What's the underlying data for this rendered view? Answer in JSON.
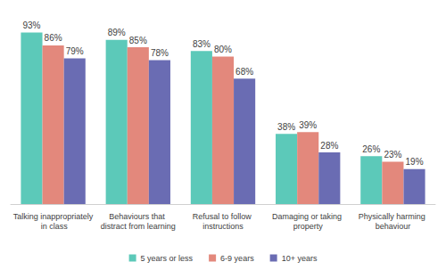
{
  "chart_data": {
    "type": "bar",
    "categories": [
      "Talking inappropriately in class",
      "Behaviours that distract from learning",
      "Refusal to follow instructions",
      "Damaging or taking property",
      "Physically harming behaviour"
    ],
    "series": [
      {
        "name": "5 years or less",
        "color": "#5cc9b9",
        "values": [
          93,
          89,
          83,
          38,
          26
        ],
        "value_labels": [
          "93%",
          "89%",
          "83%",
          "38%",
          "26%"
        ]
      },
      {
        "name": "6-9 years",
        "color": "#e3887c",
        "values": [
          86,
          85,
          80,
          39,
          23
        ],
        "value_labels": [
          "86%",
          "85%",
          "80%",
          "39%",
          "23%"
        ]
      },
      {
        "name": "10+ years",
        "color": "#6a6cb3",
        "values": [
          79,
          78,
          68,
          28,
          19
        ],
        "value_labels": [
          "79%",
          "78%",
          "68%",
          "28%",
          "19%"
        ]
      }
    ],
    "ylim": [
      0,
      100
    ],
    "data_labels": true,
    "tick_labels": "x",
    "legend": "bottom",
    "grid": false
  }
}
